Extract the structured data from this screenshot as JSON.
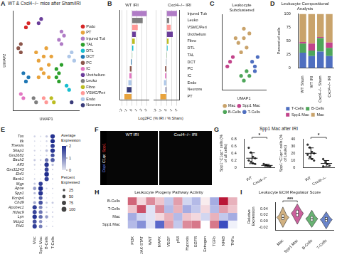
{
  "chart_data": [
    {
      "panel": "A",
      "type": "scatter",
      "title": "WT & Cxcl4−/− mice after Sham/IRI",
      "x_label": "UMAP1",
      "y_label": "UMAP2",
      "xlim": [
        -12,
        14
      ],
      "ylim": [
        -12,
        12
      ],
      "tick_labels": false,
      "legend": "right",
      "series": [
        {
          "name": "Podo",
          "color": "#d62728",
          "x": [
            -7,
            -6
          ],
          "y": [
            8,
            9
          ]
        },
        {
          "name": "PT",
          "color": "#e8a33d",
          "x": [
            -2,
            0,
            2,
            1,
            -1,
            3,
            -3,
            0,
            -2,
            2
          ],
          "y": [
            0,
            1,
            -1,
            3,
            -2,
            1,
            2,
            -3,
            -4,
            -4
          ]
        },
        {
          "name": "Injured Tub",
          "color": "#b07cc6",
          "x": [
            6,
            7,
            8,
            7
          ],
          "y": [
            5,
            7,
            6,
            4
          ]
        },
        {
          "name": "TAL",
          "color": "#2ca02c",
          "x": [
            5,
            6,
            7,
            5,
            6
          ],
          "y": [
            -2,
            -3,
            -1,
            -4,
            -5
          ]
        },
        {
          "name": "DTL",
          "color": "#17becf",
          "x": [
            9,
            10
          ],
          "y": [
            -6,
            -7
          ]
        },
        {
          "name": "DCT",
          "color": "#1f77b4",
          "x": [
            -6,
            -7,
            -8
          ],
          "y": [
            -4,
            -5,
            -3
          ]
        },
        {
          "name": "PC",
          "color": "#8c564b",
          "x": [
            -9,
            -10,
            -9
          ],
          "y": [
            2,
            3,
            4
          ]
        },
        {
          "name": "IC",
          "color": "#e377c2",
          "x": [
            -9,
            -8
          ],
          "y": [
            -8,
            -9
          ]
        },
        {
          "name": "Urothelium",
          "color": "#6a3d9a",
          "x": [
            -2,
            -1
          ],
          "y": [
            9,
            10
          ]
        },
        {
          "name": "Leuko",
          "color": "#7f7f7f",
          "x": [
            -4,
            -3
          ],
          "y": [
            -9,
            -10
          ]
        },
        {
          "name": "Fibro",
          "color": "#bcbd22",
          "x": [
            3,
            4
          ],
          "y": [
            -9,
            -10
          ]
        },
        {
          "name": "VSMC/Peri",
          "color": "#ff9896",
          "x": [
            0,
            1
          ],
          "y": [
            -9,
            -10
          ]
        },
        {
          "name": "Endo",
          "color": "#aec7e8",
          "x": [
            10,
            11,
            12
          ],
          "y": [
            1,
            2,
            0
          ]
        },
        {
          "name": "Neurons",
          "color": "#393b79",
          "x": [
            11
          ],
          "y": [
            -10
          ]
        }
      ]
    },
    {
      "panel": "B",
      "type": "bar",
      "orientation": "horizontal",
      "x_label": "Log2FC (% IRI / % Sham)",
      "grid": true,
      "categories": [
        "Injured Tub",
        "Leuko",
        "VSMC/Peri",
        "Urothelium",
        "Fibro",
        "DTL",
        "TAL",
        "DCT",
        "PC",
        "IC",
        "Endo",
        "Neurons",
        "PT"
      ],
      "colors": [
        "#b07cc6",
        "#7f7f7f",
        "#ff9896",
        "#6a3d9a",
        "#bcbd22",
        "#17becf",
        "#2ca02c",
        "#1f77b4",
        "#8c564b",
        "#e377c2",
        "#aec7e8",
        "#393b79",
        "#e8a33d"
      ],
      "panels": [
        {
          "title": "WT IRI",
          "xlim": [
            -2.5,
            3.5
          ],
          "xticks": [
            -2,
            -1,
            0,
            1,
            2,
            3
          ],
          "values": [
            3.0,
            2.2,
            1.2,
            0.8,
            0.6,
            0.3,
            0.1,
            -0.2,
            -0.4,
            -0.5,
            -0.7,
            -1.0,
            -1.5
          ]
        },
        {
          "title": "Cxcl4−/− IRI",
          "xlim": [
            -2.5,
            2.5
          ],
          "xticks": [
            -2,
            -1,
            0,
            1,
            2
          ],
          "values": [
            2.0,
            0.5,
            0.8,
            1.2,
            0.4,
            0.2,
            0.1,
            -0.1,
            -0.3,
            -0.3,
            -0.5,
            -0.2,
            -1.2
          ]
        }
      ]
    },
    {
      "panel": "C",
      "type": "scatter",
      "title": "Leukocyte Subclustered",
      "x_label": "UMAP1",
      "xlim": [
        -8,
        8
      ],
      "ylim": [
        -8,
        8
      ],
      "tick_labels": false,
      "legend": "bottom",
      "series": [
        {
          "name": "Mac",
          "color": "#c9a36b",
          "x": [
            -2,
            0,
            1,
            -1,
            2,
            0,
            -3
          ],
          "y": [
            2,
            3,
            1,
            0,
            4,
            5,
            3
          ]
        },
        {
          "name": "Spp1 Mac",
          "color": "#c2448b",
          "x": [
            -5,
            -4,
            -6
          ],
          "y": [
            -2,
            -1,
            -3
          ]
        },
        {
          "name": "B-Cells",
          "color": "#4fa65a",
          "x": [
            -1,
            0,
            1,
            2
          ],
          "y": [
            -5,
            -6,
            -4,
            -5
          ]
        },
        {
          "name": "T-Cells",
          "color": "#4f6fc0",
          "x": [
            3,
            4,
            5,
            4
          ],
          "y": [
            -2,
            -3,
            -1,
            -4
          ]
        }
      ]
    },
    {
      "panel": "D",
      "type": "bar",
      "stacked": true,
      "title": "Leukocyte Compositional Analysis",
      "y_label": "Percent of cells",
      "categories": [
        "WT Sham",
        "WT IRI",
        "Cxcl4−/− Sham",
        "Cxcl4−/− IRI"
      ],
      "ylim": [
        0,
        100
      ],
      "yticks": [
        0,
        25,
        50,
        75,
        100
      ],
      "legend": "bottom",
      "series": [
        {
          "name": "T-Cells",
          "color": "#4f6fc0",
          "values": [
            28,
            22,
            30,
            22
          ]
        },
        {
          "name": "B-Cells",
          "color": "#4fa65a",
          "values": [
            17,
            10,
            25,
            15
          ]
        },
        {
          "name": "Spp1 Mac",
          "color": "#c2448b",
          "values": [
            3,
            13,
            2,
            10
          ]
        },
        {
          "name": "Mac",
          "color": "#c9a36b",
          "values": [
            52,
            55,
            43,
            53
          ]
        }
      ]
    },
    {
      "panel": "E",
      "type": "dot",
      "rows": [
        "Tox",
        "Itk",
        "Themis",
        "Skap1",
        "Gm2682",
        "Bach2",
        "Aff3",
        "Gm31243",
        "Ebf1",
        "Bank1",
        "Mgp",
        "Apoe",
        "Spp1",
        "Kcnip4",
        "Chd9",
        "Apobec1",
        "Hdac9",
        "Lyn",
        "Mctp1",
        "Pid1"
      ],
      "columns": [
        "Mac",
        "Spp1 Mac",
        "B-Cells",
        "T-Cells"
      ],
      "expression": [
        [
          0.2,
          0.1,
          0.3,
          1.9
        ],
        [
          0.1,
          0.1,
          0.2,
          2.0
        ],
        [
          0.1,
          0.0,
          0.1,
          1.8
        ],
        [
          0.2,
          0.1,
          0.4,
          1.9
        ],
        [
          0.1,
          0.1,
          0.2,
          1.6
        ],
        [
          0.3,
          0.2,
          1.2,
          1.5
        ],
        [
          0.2,
          0.1,
          1.9,
          0.4
        ],
        [
          0.1,
          0.1,
          1.7,
          0.2
        ],
        [
          0.1,
          0.1,
          2.0,
          0.1
        ],
        [
          0.2,
          0.1,
          1.8,
          0.2
        ],
        [
          0.3,
          1.8,
          0.1,
          0.1
        ],
        [
          0.8,
          2.0,
          0.2,
          0.2
        ],
        [
          0.4,
          1.9,
          0.1,
          0.1
        ],
        [
          0.2,
          1.5,
          0.1,
          0.1
        ],
        [
          0.6,
          1.6,
          0.3,
          0.3
        ],
        [
          1.8,
          1.0,
          0.2,
          0.1
        ],
        [
          1.7,
          1.2,
          0.3,
          0.2
        ],
        [
          1.9,
          1.3,
          0.8,
          0.2
        ],
        [
          1.6,
          0.9,
          0.1,
          0.1
        ],
        [
          1.8,
          1.1,
          0.2,
          0.2
        ]
      ],
      "percent": [
        [
          15,
          10,
          25,
          85
        ],
        [
          8,
          6,
          12,
          80
        ],
        [
          5,
          4,
          8,
          75
        ],
        [
          12,
          8,
          30,
          85
        ],
        [
          6,
          5,
          10,
          60
        ],
        [
          20,
          15,
          60,
          70
        ],
        [
          12,
          8,
          85,
          25
        ],
        [
          6,
          5,
          70,
          10
        ],
        [
          5,
          4,
          90,
          6
        ],
        [
          10,
          6,
          80,
          10
        ],
        [
          20,
          70,
          5,
          4
        ],
        [
          50,
          90,
          12,
          10
        ],
        [
          25,
          85,
          5,
          5
        ],
        [
          12,
          60,
          5,
          4
        ],
        [
          40,
          70,
          20,
          20
        ],
        [
          80,
          55,
          10,
          6
        ],
        [
          75,
          60,
          15,
          10
        ],
        [
          85,
          65,
          45,
          12
        ],
        [
          70,
          45,
          5,
          4
        ],
        [
          80,
          55,
          10,
          8
        ]
      ],
      "color_label": "Average Expression",
      "clim": [
        0,
        2
      ],
      "cticks": [
        0,
        1,
        2
      ],
      "size_label": "Percent Expressed",
      "size_ticks": [
        25,
        50,
        75,
        100
      ]
    },
    {
      "panel": "F",
      "type": "image",
      "images": [
        "WT IRI",
        "Cxcl4−/− IRI"
      ],
      "channels": [
        {
          "name": "Dapi",
          "color": "#6f8cff"
        },
        {
          "name": "C1qc",
          "color": "#ffffff"
        },
        {
          "name": "Spp1",
          "color": "#ff4040"
        }
      ]
    },
    {
      "panel": "G",
      "type": "scatter",
      "title": "Spp1 Mac after IRI",
      "categories": [
        "WT",
        "Cxcl4−/−"
      ],
      "panels": [
        {
          "y_label": "Spp1⁺C1qc⁺ cells (% of all cells)",
          "ylim": [
            0,
            0.8
          ],
          "yticks": [
            0,
            0.2,
            0.4,
            0.6,
            0.8
          ],
          "annotation": {
            "text": "*",
            "between": [
              "WT",
              "Cxcl4−/−"
            ]
          },
          "groups": [
            {
              "values": [
                0.55,
                0.42,
                0.3,
                0.26,
                0.2,
                0.16,
                0.12,
                0.1
              ],
              "mean": 0.26,
              "sd": 0.15
            },
            {
              "values": [
                0.1,
                0.07,
                0.05,
                0.03
              ],
              "mean": 0.06,
              "sd": 0.03
            }
          ]
        },
        {
          "y_label": "Spp1⁺C1qc⁺ cells (% of Leuko)",
          "ylim": [
            0,
            40
          ],
          "yticks": [
            0,
            10,
            20,
            30,
            40
          ],
          "annotation": {
            "text": "*",
            "between": [
              "WT",
              "Cxcl4−/−"
            ]
          },
          "groups": [
            {
              "values": [
                32,
                28,
                22,
                20,
                18,
                15,
                12,
                10
              ],
              "mean": 20,
              "sd": 7.5
            },
            {
              "values": [
                12,
                8,
                5,
                3,
                2
              ],
              "mean": 6,
              "sd": 4
            }
          ]
        }
      ]
    },
    {
      "panel": "H",
      "type": "heatmap",
      "title": "Leukocyte Progeny Pathway Activity",
      "rows": [
        "B-Cells",
        "T-Cells",
        "Mac",
        "Spp1 Mac"
      ],
      "columns": [
        "PI3K",
        "JAK-STAT",
        "WNT",
        "MAPK",
        "VEGF",
        "p53",
        "Hypoxia",
        "EGFR",
        "Estrogen",
        "TGFb",
        "NFkB",
        "TNFa"
      ],
      "cells": [
        [
          0.8,
          0.2,
          0.6,
          0.3,
          -0.4,
          0.5,
          -0.3,
          -0.5,
          0.1,
          -0.6,
          1.2,
          0.4
        ],
        [
          0.3,
          0.9,
          -0.2,
          0.6,
          -0.5,
          0.4,
          -0.6,
          -0.4,
          0.2,
          -0.5,
          0.5,
          0.3
        ],
        [
          -0.6,
          -0.3,
          -0.2,
          0.2,
          0.4,
          -0.5,
          0.3,
          0.2,
          -0.3,
          0.4,
          -0.4,
          -0.6
        ],
        [
          -0.5,
          -0.8,
          -0.2,
          -1.1,
          0.5,
          -0.4,
          0.6,
          0.7,
          0.0,
          0.7,
          -1.3,
          -0.1
        ]
      ]
    },
    {
      "panel": "I",
      "type": "violin",
      "title": "Leukocyte ECM Regulator Score",
      "y_label": "Relative Expression",
      "categories": [
        "Mac",
        "Spp1 Mac",
        "B-Cells",
        "T-Cells"
      ],
      "colors": [
        "#c9a36b",
        "#c2448b",
        "#4fa65a",
        "#4f6fc0"
      ],
      "ylim": [
        -0.03,
        0.06
      ],
      "yticks": [
        {
          "value": -0.02,
          "label": "-0.02"
        },
        {
          "value": 0,
          "label": "0.00"
        },
        {
          "value": 0.02,
          "label": "0.02"
        },
        {
          "value": 0.04,
          "label": "0.04"
        }
      ],
      "annotation": {
        "text": "***",
        "between": [
          "Mac",
          "Spp1 Mac"
        ]
      },
      "stats": [
        {
          "min": -0.02,
          "q1": 0.005,
          "median": 0.012,
          "q3": 0.02,
          "max": 0.045
        },
        {
          "min": -0.01,
          "q1": 0.015,
          "median": 0.025,
          "q3": 0.035,
          "max": 0.055
        },
        {
          "min": -0.02,
          "q1": 0.0,
          "median": 0.008,
          "q3": 0.015,
          "max": 0.035
        },
        {
          "min": -0.025,
          "q1": -0.002,
          "median": 0.005,
          "q3": 0.012,
          "max": 0.03
        }
      ]
    }
  ]
}
